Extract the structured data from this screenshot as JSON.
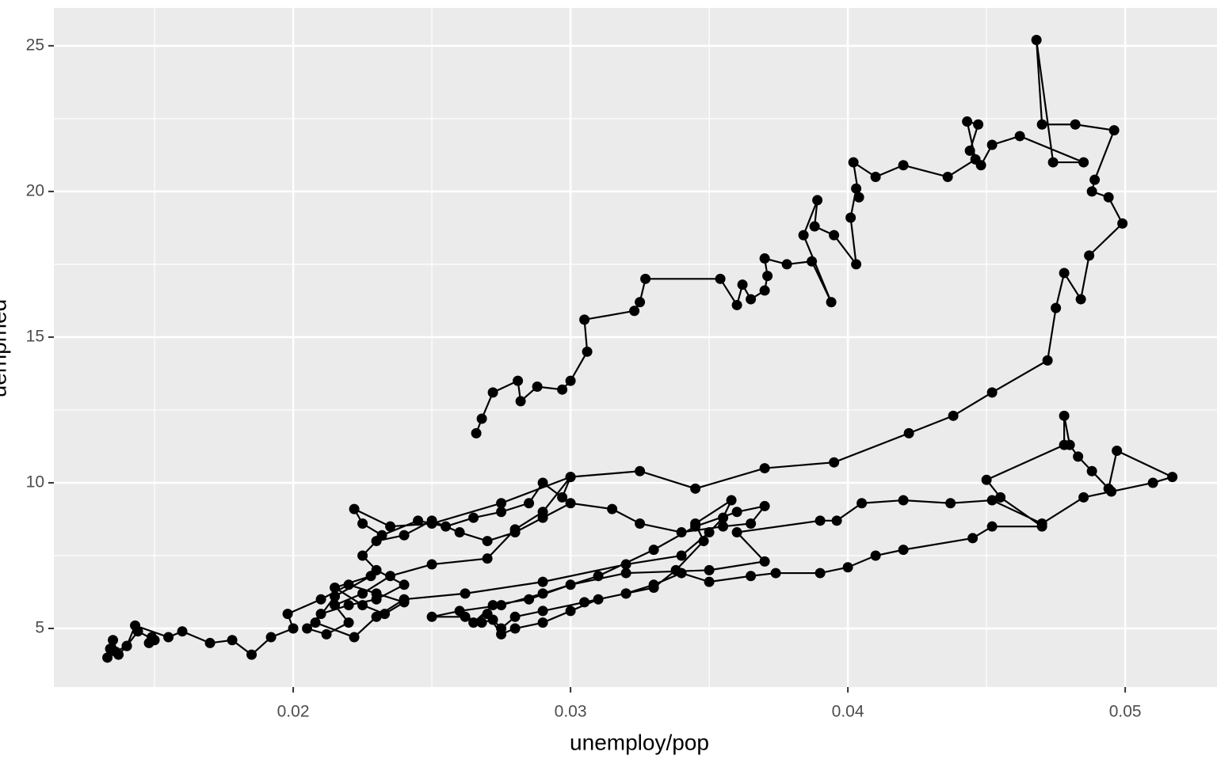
{
  "chart_data": {
    "type": "scatter",
    "connect": true,
    "color": "#000000",
    "xlabel": "unemploy/pop",
    "ylabel": "uempmed",
    "xlim": [
      0.01137,
      0.05331
    ],
    "ylim": [
      2.99,
      26.3
    ],
    "xticks": [
      0.02,
      0.03,
      0.04,
      0.05
    ],
    "yticks": [
      5,
      10,
      15,
      20,
      25
    ],
    "xminor": [
      0.015,
      0.025,
      0.035,
      0.045
    ],
    "yminor": [
      7.5,
      12.5,
      17.5,
      22.5
    ],
    "grid": true,
    "x": [
      0.0148,
      0.0149,
      0.015,
      0.0144,
      0.014,
      0.0137,
      0.0135,
      0.0134,
      0.0133,
      0.0136,
      0.014,
      0.0143,
      0.0155,
      0.016,
      0.017,
      0.0178,
      0.0185,
      0.0192,
      0.02,
      0.0198,
      0.021,
      0.022,
      0.023,
      0.024,
      0.0233,
      0.0225,
      0.0215,
      0.0228,
      0.0215,
      0.0208,
      0.0222,
      0.023,
      0.024,
      0.0262,
      0.029,
      0.032,
      0.034,
      0.035,
      0.0355,
      0.0358,
      0.0345,
      0.0348,
      0.0338,
      0.033,
      0.032,
      0.031,
      0.03,
      0.029,
      0.028,
      0.0275,
      0.027,
      0.0265,
      0.0272,
      0.0285,
      0.03,
      0.032,
      0.035,
      0.037,
      0.036,
      0.039,
      0.0396,
      0.0405,
      0.042,
      0.0437,
      0.0452,
      0.047,
      0.0485,
      0.0495,
      0.051,
      0.0517,
      0.0497,
      0.0494,
      0.0488,
      0.0483,
      0.048,
      0.0478,
      0.0478,
      0.045,
      0.0455,
      0.047,
      0.0452,
      0.0445,
      0.042,
      0.041,
      0.04,
      0.039,
      0.0374,
      0.0365,
      0.035,
      0.034,
      0.033,
      0.032,
      0.0305,
      0.029,
      0.028,
      0.0275,
      0.0272,
      0.0268,
      0.0262,
      0.025,
      0.026,
      0.0275,
      0.029,
      0.031,
      0.033,
      0.0345,
      0.036,
      0.037,
      0.0365,
      0.0355,
      0.034,
      0.0325,
      0.0315,
      0.03,
      0.029,
      0.028,
      0.027,
      0.026,
      0.025,
      0.024,
      0.023,
      0.0225,
      0.023,
      0.024,
      0.023,
      0.022,
      0.021,
      0.0205,
      0.0212,
      0.022,
      0.0215,
      0.0225,
      0.0235,
      0.025,
      0.027,
      0.028,
      0.029,
      0.03,
      0.0297,
      0.029,
      0.0285,
      0.0275,
      0.0265,
      0.0255,
      0.0245,
      0.0232,
      0.0225,
      0.0222,
      0.0235,
      0.025,
      0.0275,
      0.03,
      0.0325,
      0.0345,
      0.037,
      0.0395,
      0.0422,
      0.0438,
      0.0452,
      0.0472,
      0.0475,
      0.0478,
      0.0484,
      0.0487,
      0.0499,
      0.0494,
      0.0488,
      0.0489,
      0.0496,
      0.0482,
      0.047,
      0.0468,
      0.0474,
      0.0485,
      0.0462,
      0.0452,
      0.0448,
      0.0444,
      0.0447,
      0.0443,
      0.0446,
      0.0436,
      0.042,
      0.041,
      0.0402,
      0.0404,
      0.0403,
      0.0401,
      0.0403,
      0.0395,
      0.0388,
      0.0389,
      0.0384,
      0.0394,
      0.0387,
      0.0378,
      0.037,
      0.0371,
      0.037,
      0.0365,
      0.0362,
      0.036,
      0.0354,
      0.0327,
      0.0325,
      0.0323,
      0.0305,
      0.0306,
      0.03,
      0.0297,
      0.0288,
      0.0282,
      0.0281,
      0.0272,
      0.0268,
      0.0266
    ],
    "values": [
      4.5,
      4.7,
      4.6,
      4.9,
      4.4,
      4.1,
      4.6,
      4.3,
      4.0,
      4.2,
      4.4,
      5.1,
      4.7,
      4.9,
      4.5,
      4.6,
      4.1,
      4.7,
      5.0,
      5.5,
      6.0,
      6.5,
      6.2,
      5.9,
      5.5,
      5.8,
      6.4,
      6.8,
      6.1,
      5.2,
      4.7,
      5.4,
      6.0,
      6.2,
      6.6,
      7.2,
      7.5,
      8.3,
      8.8,
      9.4,
      8.6,
      8.0,
      7.0,
      6.4,
      6.2,
      6.0,
      5.6,
      5.2,
      5.0,
      4.8,
      5.5,
      5.2,
      5.8,
      6.0,
      6.5,
      6.9,
      7.0,
      7.3,
      8.3,
      8.7,
      8.7,
      9.3,
      9.4,
      9.3,
      9.4,
      8.6,
      9.5,
      9.7,
      10.0,
      10.2,
      11.1,
      9.8,
      10.4,
      10.9,
      11.3,
      12.3,
      11.3,
      10.1,
      9.5,
      8.5,
      8.5,
      8.1,
      7.7,
      7.5,
      7.1,
      6.9,
      6.9,
      6.8,
      6.6,
      6.9,
      6.5,
      6.2,
      5.9,
      5.6,
      5.4,
      5.0,
      5.3,
      5.2,
      5.4,
      5.4,
      5.6,
      5.8,
      6.2,
      6.8,
      7.7,
      8.5,
      9.0,
      9.2,
      8.6,
      8.5,
      8.3,
      8.6,
      9.1,
      9.3,
      8.8,
      8.3,
      8.0,
      8.3,
      8.7,
      8.2,
      8.0,
      7.5,
      7.0,
      6.5,
      6.0,
      5.8,
      5.5,
      5.0,
      4.8,
      5.2,
      5.8,
      6.2,
      6.8,
      7.2,
      7.4,
      8.4,
      9.0,
      10.2,
      9.5,
      10.0,
      9.3,
      9.0,
      8.8,
      8.5,
      8.7,
      8.2,
      8.6,
      9.1,
      8.5,
      8.6,
      9.3,
      10.2,
      10.4,
      9.8,
      10.5,
      10.7,
      11.7,
      12.3,
      13.1,
      14.2,
      16.0,
      17.2,
      16.3,
      17.8,
      18.9,
      19.8,
      20.0,
      20.4,
      22.1,
      22.3,
      22.3,
      25.2,
      21.0,
      21.0,
      21.9,
      21.6,
      20.9,
      21.4,
      22.3,
      22.4,
      21.1,
      20.5,
      20.9,
      20.5,
      21.0,
      19.8,
      20.1,
      19.1,
      17.5,
      18.5,
      18.8,
      19.7,
      18.5,
      16.2,
      17.6,
      17.5,
      17.7,
      17.1,
      16.6,
      16.3,
      16.8,
      16.1,
      17.0,
      17.0,
      16.2,
      15.9,
      15.6,
      14.5,
      13.5,
      13.2,
      13.3,
      12.8,
      13.5,
      13.1,
      12.2,
      11.7
    ]
  }
}
